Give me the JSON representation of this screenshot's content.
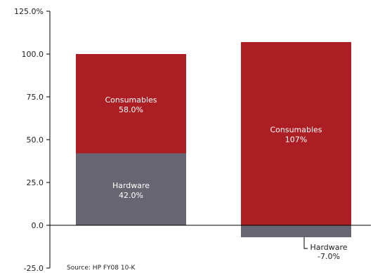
{
  "chart_data": {
    "type": "bar",
    "stacked": true,
    "categories": [
      "",
      ""
    ],
    "ylim": [
      -25,
      125
    ],
    "yticks": [
      -25,
      0,
      25,
      50,
      75,
      100,
      125
    ],
    "ytick_labels": [
      "-25.0",
      "0.0",
      "25.0",
      "50.0",
      "75.0",
      "100.0",
      "125.0%"
    ],
    "series": [
      {
        "name": "Hardware",
        "values": [
          42.0,
          -7.0
        ],
        "color": "#666571",
        "labels": [
          "42.0%",
          "-7.0%"
        ]
      },
      {
        "name": "Consumables",
        "values": [
          58.0,
          107.0
        ],
        "color": "#ab1e24",
        "labels": [
          "58.0%",
          "107%"
        ]
      }
    ],
    "grid": false,
    "legend": "none",
    "source": "Source: HP FY08 10-K"
  }
}
